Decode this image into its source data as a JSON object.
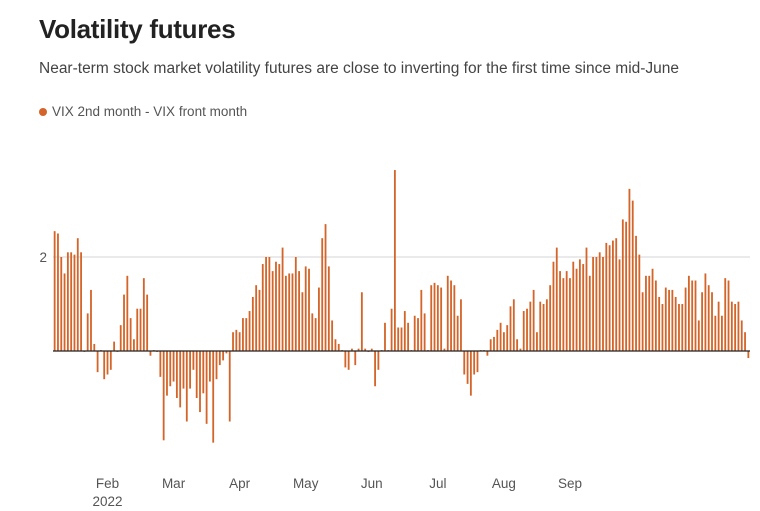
{
  "chart_data": {
    "type": "bar",
    "title": "Volatility futures",
    "subtitle": "Near-term stock market volatility futures are close to inverting for the first time since mid-June",
    "legend": [
      {
        "name": "VIX 2nd month - VIX front month",
        "color": "#d4652a"
      }
    ],
    "xlabel": "",
    "ylabel": "",
    "ylim": [
      -2.1,
      4.0
    ],
    "grid": true,
    "y_ticks": [
      {
        "value": 2,
        "label": "2"
      }
    ],
    "x_ticks": [
      {
        "index": 16,
        "label": "Feb",
        "sub": "2022"
      },
      {
        "index": 36,
        "label": "Mar",
        "sub": ""
      },
      {
        "index": 56,
        "label": "Apr",
        "sub": ""
      },
      {
        "index": 76,
        "label": "May",
        "sub": ""
      },
      {
        "index": 96,
        "label": "Jun",
        "sub": ""
      },
      {
        "index": 116,
        "label": "Jul",
        "sub": ""
      },
      {
        "index": 136,
        "label": "Aug",
        "sub": ""
      },
      {
        "index": 156,
        "label": "Sep",
        "sub": ""
      }
    ],
    "series": [
      {
        "name": "VIX 2nd month - VIX front month",
        "values": [
          2.55,
          2.5,
          2.0,
          1.65,
          2.1,
          2.1,
          2.05,
          2.4,
          2.1,
          -0.02,
          0.8,
          1.3,
          0.15,
          -0.45,
          0.02,
          -0.6,
          -0.5,
          -0.4,
          0.2,
          -0.02,
          0.55,
          1.2,
          1.6,
          0.7,
          0.25,
          0.9,
          0.9,
          1.55,
          1.2,
          -0.1,
          0.02,
          -0.02,
          -0.55,
          -1.9,
          -0.95,
          -0.75,
          -0.65,
          -1.0,
          -1.2,
          -0.8,
          -1.5,
          -0.8,
          -0.4,
          -1.0,
          -1.3,
          -0.9,
          -1.55,
          -0.65,
          -1.95,
          -0.6,
          -0.3,
          -0.2,
          -0.05,
          -1.5,
          0.4,
          0.45,
          0.4,
          0.7,
          0.7,
          0.85,
          1.15,
          1.4,
          1.3,
          1.85,
          2.0,
          2.0,
          1.7,
          1.9,
          1.85,
          2.2,
          1.6,
          1.65,
          1.65,
          2.0,
          1.7,
          1.25,
          1.8,
          1.75,
          0.8,
          0.7,
          1.35,
          2.4,
          2.7,
          1.8,
          0.65,
          0.25,
          0.15,
          0.02,
          -0.35,
          -0.4,
          0.05,
          -0.3,
          0.05,
          1.25,
          0.05,
          -0.02,
          0.05,
          -0.75,
          -0.4,
          0.02,
          0.6,
          0.02,
          0.9,
          3.85,
          0.5,
          0.5,
          0.85,
          0.6,
          0.02,
          0.75,
          0.7,
          1.3,
          0.8,
          0.02,
          1.4,
          1.45,
          1.4,
          1.35,
          0.05,
          1.6,
          1.5,
          1.4,
          0.75,
          1.1,
          -0.5,
          -0.7,
          -0.95,
          -0.5,
          -0.45,
          0.02,
          0.02,
          -0.1,
          0.25,
          0.3,
          0.45,
          0.6,
          0.4,
          0.55,
          0.95,
          1.1,
          0.25,
          0.05,
          0.85,
          0.9,
          1.05,
          1.3,
          0.4,
          1.05,
          1.0,
          1.1,
          1.4,
          1.9,
          2.2,
          1.7,
          1.55,
          1.7,
          1.55,
          1.9,
          1.75,
          1.95,
          1.85,
          2.2,
          1.6,
          2.0,
          2.0,
          2.1,
          2.0,
          2.3,
          2.25,
          2.35,
          2.4,
          1.95,
          2.8,
          2.75,
          3.45,
          3.2,
          2.45,
          2.05,
          1.25,
          1.6,
          1.6,
          1.75,
          1.5,
          1.15,
          1.0,
          1.35,
          1.3,
          1.3,
          1.15,
          1.0,
          1.0,
          1.35,
          1.6,
          1.5,
          1.5,
          0.65,
          1.25,
          1.65,
          1.4,
          1.25,
          0.75,
          1.05,
          0.75,
          1.55,
          1.5,
          1.05,
          1.0,
          1.05,
          0.65,
          0.4,
          -0.15
        ]
      }
    ]
  }
}
